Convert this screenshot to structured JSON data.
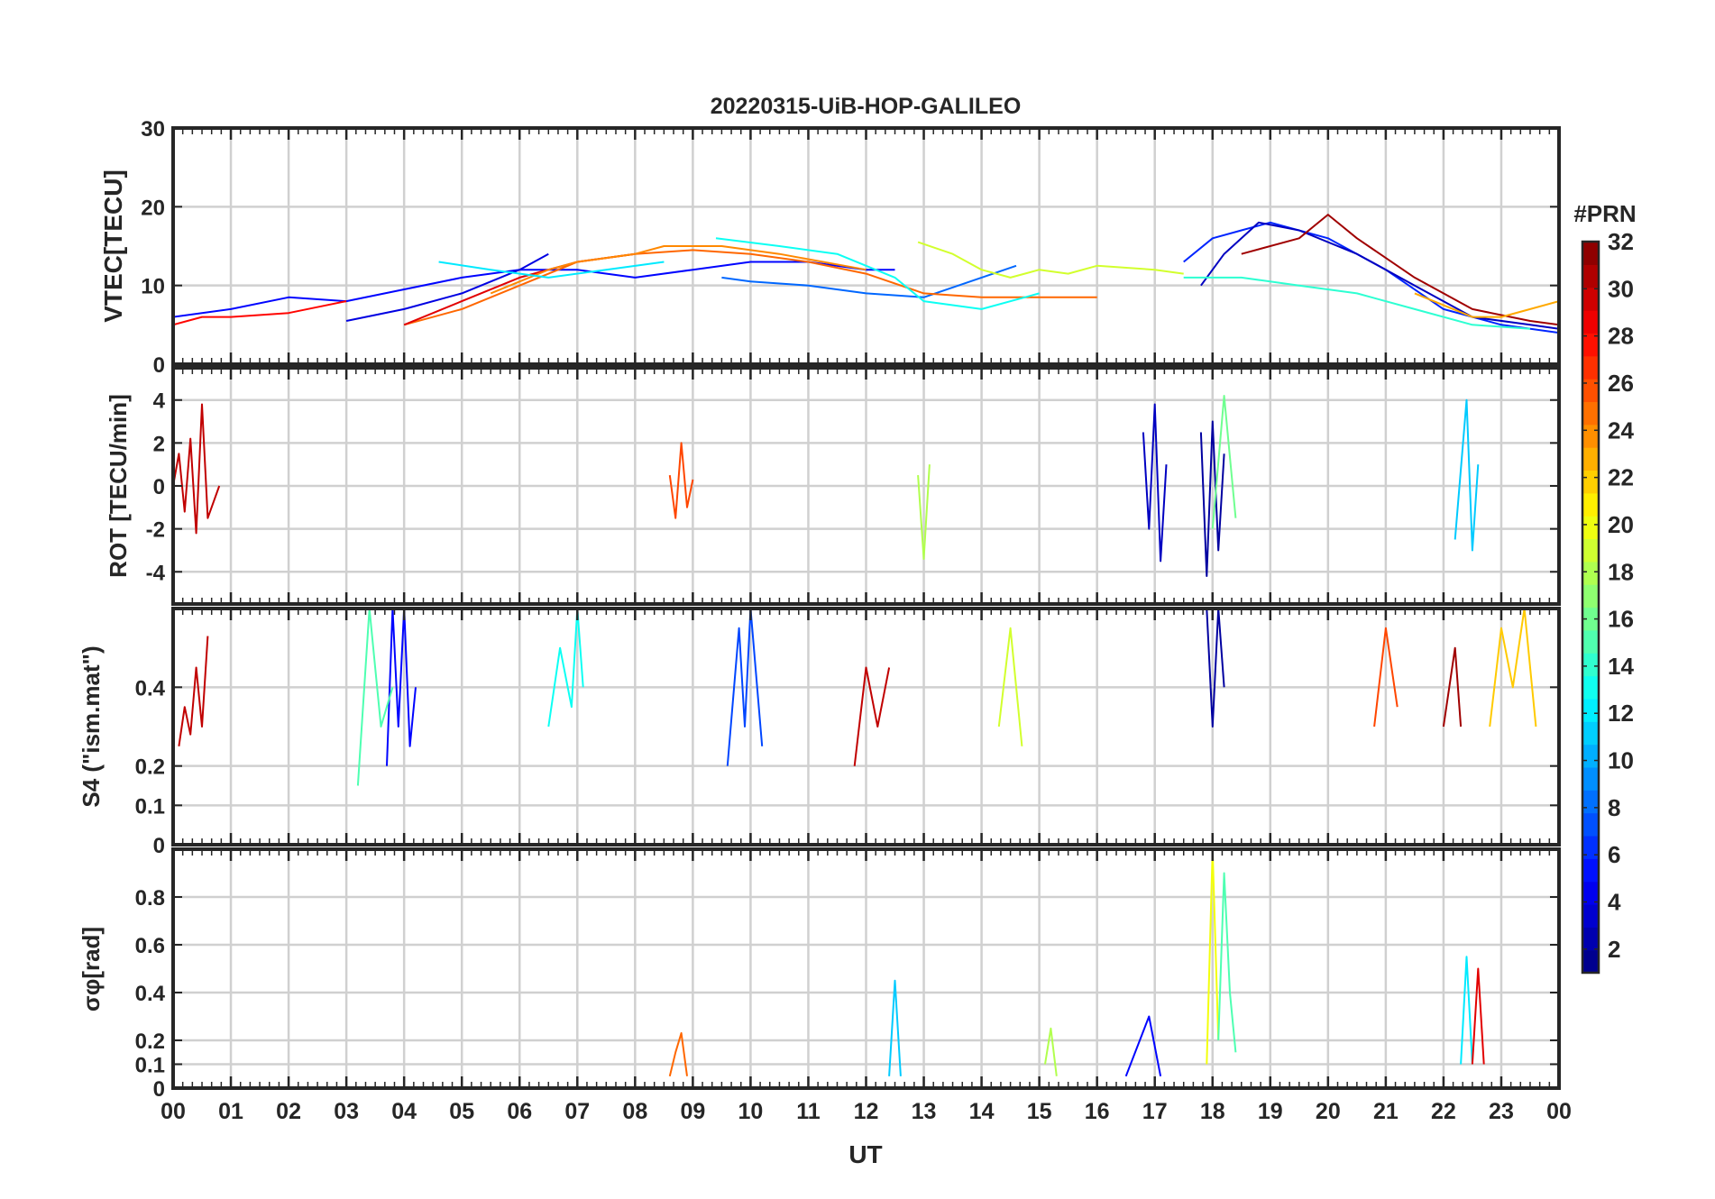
{
  "chart_data": {
    "type": "line",
    "title": "20220315-UiB-HOP-GALILEO",
    "xlabel": "UT",
    "x_range": [
      0,
      24
    ],
    "x_ticks": [
      0,
      1,
      2,
      3,
      4,
      5,
      6,
      7,
      8,
      9,
      10,
      11,
      12,
      13,
      14,
      15,
      16,
      17,
      18,
      19,
      20,
      21,
      22,
      23,
      24
    ],
    "x_tick_labels": [
      "00",
      "01",
      "02",
      "03",
      "04",
      "05",
      "06",
      "07",
      "08",
      "09",
      "10",
      "11",
      "12",
      "13",
      "14",
      "15",
      "16",
      "17",
      "18",
      "19",
      "20",
      "21",
      "22",
      "23",
      "00"
    ],
    "colorbar": {
      "title": "#PRN",
      "range": [
        1,
        32
      ],
      "ticks": [
        2,
        4,
        6,
        8,
        10,
        12,
        14,
        16,
        18,
        20,
        22,
        24,
        26,
        28,
        30,
        32
      ],
      "tick_labels": [
        "2",
        "4",
        "6",
        "8",
        "10",
        "12",
        "14",
        "16",
        "18",
        "20",
        "22",
        "24",
        "26",
        "28",
        "30",
        "32"
      ],
      "colormap": "jet"
    },
    "panels": [
      {
        "id": "vtec",
        "ylabel": "VTEC[TECU]",
        "ylim": [
          0,
          30
        ],
        "yticks": [
          0,
          10,
          20,
          30
        ],
        "ytick_labels": [
          "0",
          "10",
          "20",
          "30"
        ],
        "series": [
          {
            "prn": 5,
            "x": [
              0,
              1,
              2,
              3,
              4,
              5,
              6,
              7,
              8,
              9,
              10,
              11,
              12,
              12.5
            ],
            "y": [
              6,
              7,
              8.5,
              8,
              9.5,
              11,
              12,
              12,
              11,
              12,
              13,
              13,
              12,
              12
            ]
          },
          {
            "prn": 4,
            "x": [
              3,
              4,
              5,
              6,
              6.5
            ],
            "y": [
              5.5,
              7,
              9,
              12,
              14
            ]
          },
          {
            "prn": 8,
            "x": [
              9.5,
              10,
              11,
              12,
              13,
              14,
              14.6
            ],
            "y": [
              11,
              10.5,
              10,
              9,
              8.5,
              11,
              12.5
            ]
          },
          {
            "prn": 28,
            "x": [
              0,
              0.5,
              1,
              2,
              3
            ],
            "y": [
              5,
              6,
              6,
              6.5,
              8
            ]
          },
          {
            "prn": 25,
            "x": [
              4,
              5,
              6,
              7,
              8,
              9,
              10,
              11,
              12,
              13,
              14,
              15,
              16
            ],
            "y": [
              5,
              7,
              10,
              13,
              14,
              14.5,
              14,
              13,
              11.5,
              9,
              8.5,
              8.5,
              8.5
            ]
          },
          {
            "prn": 29,
            "x": [
              4,
              5,
              6,
              7,
              8
            ],
            "y": [
              5,
              8,
              11,
              13,
              14
            ]
          },
          {
            "prn": 24,
            "x": [
              5.5,
              6.5,
              7,
              8,
              8.5,
              9.5,
              10.5,
              12
            ],
            "y": [
              9,
              12,
              13,
              14,
              15,
              15,
              14,
              12
            ]
          },
          {
            "prn": 12,
            "x": [
              4.6,
              5.5,
              6.5,
              7.5,
              8.5
            ],
            "y": [
              13,
              12,
              11,
              12,
              13
            ]
          },
          {
            "prn": 13,
            "x": [
              9.4,
              10.5,
              11.5,
              12.5,
              13,
              14,
              15
            ],
            "y": [
              16,
              15,
              14,
              11,
              8,
              7,
              9
            ]
          },
          {
            "prn": 19,
            "x": [
              12.9,
              13.5,
              14,
              14.5,
              15,
              15.5,
              16,
              17,
              17.5
            ],
            "y": [
              15.5,
              14,
              12,
              11,
              12,
              11.5,
              12.5,
              12,
              11.5
            ]
          },
          {
            "prn": 6,
            "x": [
              17.5,
              18,
              18.5,
              19,
              20,
              21,
              22,
              23,
              24
            ],
            "y": [
              13,
              16,
              17,
              18,
              16,
              12,
              7,
              5,
              4
            ]
          },
          {
            "prn": 3,
            "x": [
              17.8,
              18.2,
              18.8,
              19.5,
              20.5,
              21.5,
              22.5,
              23.5,
              24
            ],
            "y": [
              10,
              14,
              18,
              17,
              14,
              10,
              6,
              5,
              4.5
            ]
          },
          {
            "prn": 31,
            "x": [
              18.5,
              19.5,
              20,
              20.5,
              21.5,
              22.5,
              23.5,
              24
            ],
            "y": [
              14,
              16,
              19,
              16,
              11,
              7,
              5.5,
              5
            ]
          },
          {
            "prn": 14,
            "x": [
              17.5,
              18.5,
              19.5,
              20.5,
              21.5,
              22.5,
              23.5
            ],
            "y": [
              11,
              11,
              10,
              9,
              7,
              5,
              4.5
            ]
          },
          {
            "prn": 23,
            "x": [
              21.5,
              22.5,
              23,
              23.5,
              24
            ],
            "y": [
              9,
              6,
              6,
              7,
              8
            ]
          }
        ]
      },
      {
        "id": "rot",
        "ylabel": "ROT [TECU/min]",
        "ylim": [
          -5.5,
          5.5
        ],
        "yticks": [
          -4,
          -2,
          0,
          2,
          4
        ],
        "ytick_labels": [
          "-4",
          "-2",
          "0",
          "2",
          "4"
        ],
        "series": [
          {
            "prn": 30,
            "x": [
              0,
              0.1,
              0.2,
              0.3,
              0.4,
              0.5,
              0.6,
              0.8
            ],
            "y": [
              0,
              1.5,
              -1.2,
              2.2,
              -2.2,
              3.8,
              -1.5,
              0
            ]
          },
          {
            "prn": 26,
            "x": [
              8.6,
              8.7,
              8.8,
              8.9,
              9.0
            ],
            "y": [
              0.5,
              -1.5,
              2.0,
              -1.0,
              0.3
            ]
          },
          {
            "prn": 18,
            "x": [
              12.9,
              13.0,
              13.1
            ],
            "y": [
              0.5,
              -3.4,
              1.0
            ]
          },
          {
            "prn": 3,
            "x": [
              16.8,
              16.9,
              17.0,
              17.1,
              17.2
            ],
            "y": [
              2.5,
              -2.0,
              3.8,
              -3.5,
              1.0
            ]
          },
          {
            "prn": 2,
            "x": [
              17.8,
              17.9,
              18.0,
              18.1,
              18.2
            ],
            "y": [
              2.5,
              -4.2,
              3.0,
              -3.0,
              1.5
            ]
          },
          {
            "prn": 16,
            "x": [
              18.0,
              18.2,
              18.4
            ],
            "y": [
              -2.0,
              4.2,
              -1.5
            ]
          },
          {
            "prn": 11,
            "x": [
              22.2,
              22.4,
              22.5,
              22.6
            ],
            "y": [
              -2.5,
              4.0,
              -3.0,
              1.0
            ]
          }
        ]
      },
      {
        "id": "s4",
        "ylabel": "S4 (\"ism.mat\")",
        "ylim": [
          0,
          0.6
        ],
        "yticks": [
          0,
          0.1,
          0.2,
          0.4
        ],
        "ytick_labels": [
          "0",
          "0.1",
          "0.2",
          "0.4"
        ],
        "series": [
          {
            "prn": 30,
            "x": [
              0.1,
              0.2,
              0.3,
              0.4,
              0.5,
              0.6
            ],
            "y": [
              0.25,
              0.35,
              0.28,
              0.45,
              0.3,
              0.53
            ]
          },
          {
            "prn": 5,
            "x": [
              3.7,
              3.8,
              3.9,
              4.0,
              4.1,
              4.2
            ],
            "y": [
              0.2,
              0.6,
              0.3,
              0.6,
              0.25,
              0.4
            ]
          },
          {
            "prn": 15,
            "x": [
              3.2,
              3.4,
              3.6,
              3.8
            ],
            "y": [
              0.15,
              0.6,
              0.3,
              0.4
            ]
          },
          {
            "prn": 13,
            "x": [
              6.5,
              6.7,
              6.9,
              7.0,
              7.1
            ],
            "y": [
              0.3,
              0.5,
              0.35,
              0.6,
              0.4
            ]
          },
          {
            "prn": 7,
            "x": [
              9.6,
              9.8,
              9.9,
              10.0,
              10.2
            ],
            "y": [
              0.2,
              0.55,
              0.3,
              0.6,
              0.25
            ]
          },
          {
            "prn": 30,
            "x": [
              11.8,
              12.0,
              12.2,
              12.4
            ],
            "y": [
              0.2,
              0.45,
              0.3,
              0.45
            ]
          },
          {
            "prn": 19,
            "x": [
              14.3,
              14.5,
              14.7
            ],
            "y": [
              0.3,
              0.55,
              0.25
            ]
          },
          {
            "prn": 2,
            "x": [
              17.9,
              18.0,
              18.1,
              18.2
            ],
            "y": [
              0.6,
              0.3,
              0.6,
              0.4
            ]
          },
          {
            "prn": 22,
            "x": [
              22.8,
              23.0,
              23.2,
              23.4,
              23.6
            ],
            "y": [
              0.3,
              0.55,
              0.4,
              0.6,
              0.3
            ]
          },
          {
            "prn": 26,
            "x": [
              20.8,
              21.0,
              21.2
            ],
            "y": [
              0.3,
              0.55,
              0.35
            ]
          },
          {
            "prn": 31,
            "x": [
              22.0,
              22.2,
              22.3
            ],
            "y": [
              0.3,
              0.5,
              0.3
            ]
          }
        ]
      },
      {
        "id": "sigma_phi",
        "ylabel": "σφ[rad]",
        "ylim": [
          0,
          1.0
        ],
        "yticks": [
          0,
          0.1,
          0.2,
          0.4,
          0.6,
          0.8
        ],
        "ytick_labels": [
          "0",
          "0.1",
          "0.2",
          "0.4",
          "0.6",
          "0.8"
        ],
        "series": [
          {
            "prn": 25,
            "x": [
              8.6,
              8.7,
              8.8,
              8.9
            ],
            "y": [
              0.05,
              0.15,
              0.23,
              0.05
            ]
          },
          {
            "prn": 11,
            "x": [
              12.4,
              12.5,
              12.6
            ],
            "y": [
              0.05,
              0.45,
              0.05
            ]
          },
          {
            "prn": 18,
            "x": [
              15.1,
              15.2,
              15.3
            ],
            "y": [
              0.1,
              0.25,
              0.05
            ]
          },
          {
            "prn": 20,
            "x": [
              17.9,
              18.0,
              18.1
            ],
            "y": [
              0.1,
              1.0,
              0.2
            ]
          },
          {
            "prn": 15,
            "x": [
              18.1,
              18.2,
              18.3,
              18.4
            ],
            "y": [
              0.2,
              0.9,
              0.4,
              0.15
            ]
          },
          {
            "prn": 12,
            "x": [
              22.3,
              22.4,
              22.5
            ],
            "y": [
              0.1,
              0.55,
              0.1
            ]
          },
          {
            "prn": 29,
            "x": [
              22.5,
              22.6,
              22.7
            ],
            "y": [
              0.1,
              0.5,
              0.1
            ]
          },
          {
            "prn": 5,
            "x": [
              16.5,
              16.9,
              17.1
            ],
            "y": [
              0.05,
              0.3,
              0.05
            ]
          }
        ]
      }
    ]
  }
}
